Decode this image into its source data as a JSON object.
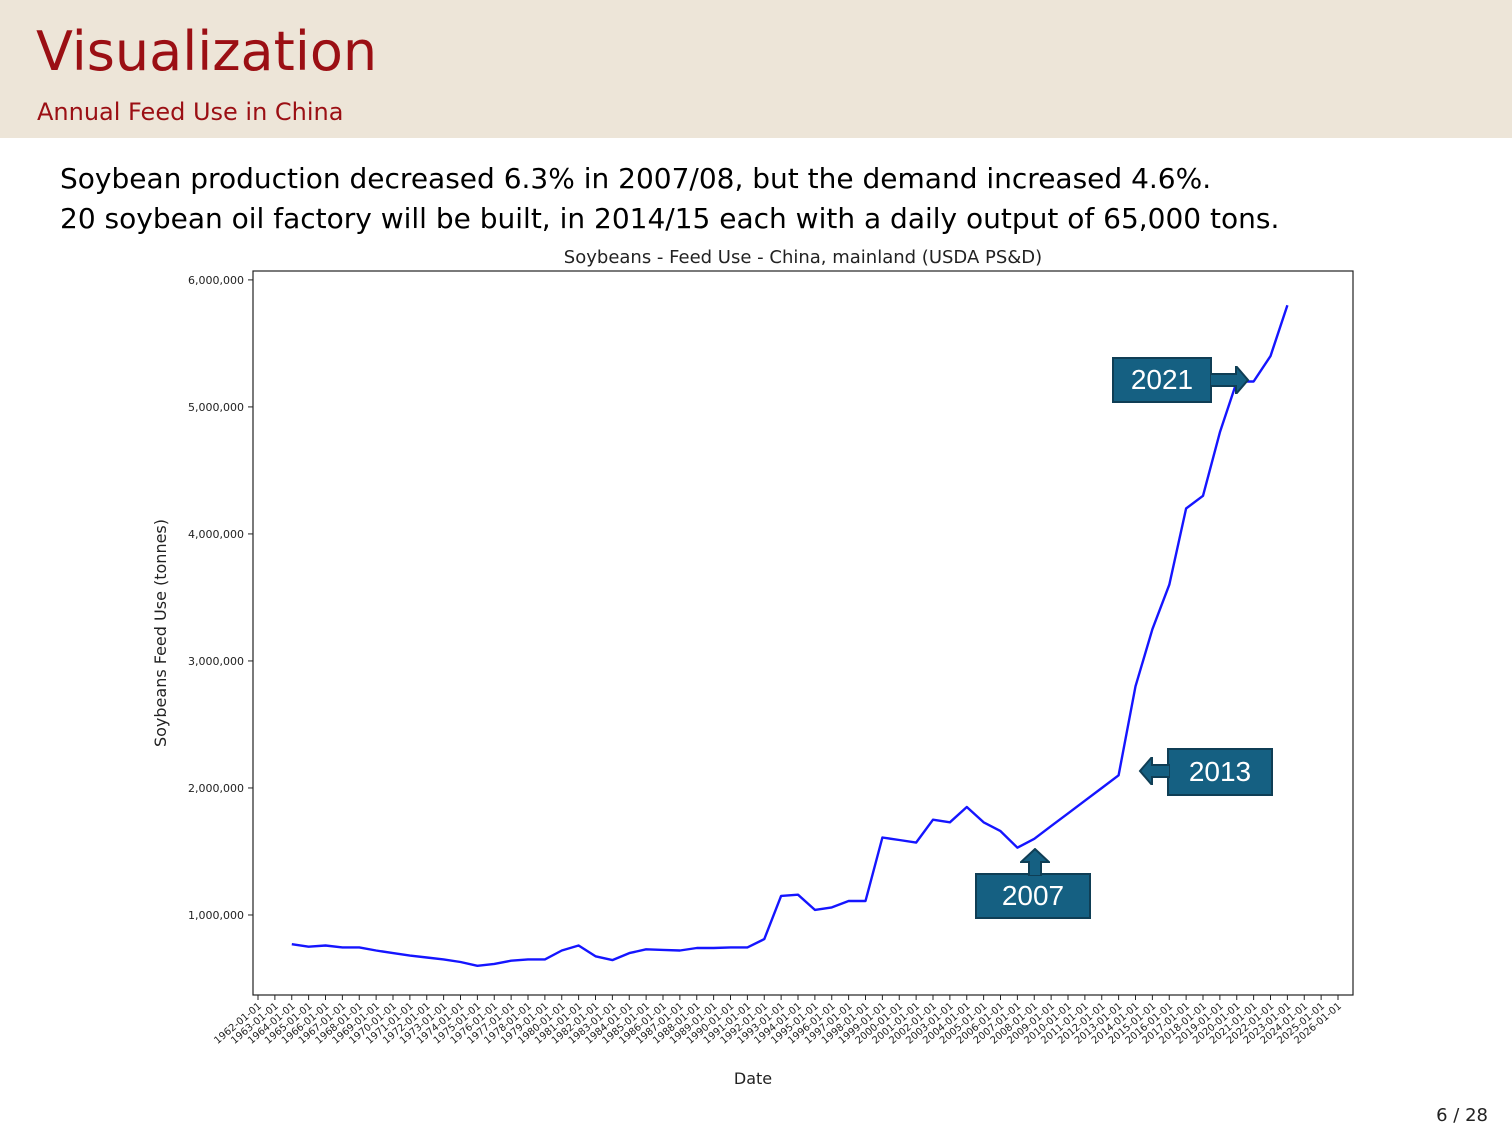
{
  "slide": {
    "title": "Visualization",
    "subtitle": "Annual Feed Use in China",
    "bullets": [
      "Soybean production decreased 6.3% in 2007/08, but the demand increased 4.6%.",
      "20 soybean oil factory will be built, in 2014/15 each with a daily output of 65,000 tons."
    ],
    "page": "6 / 28"
  },
  "callouts": [
    "2021",
    "2013",
    "2007"
  ],
  "colors": {
    "header_bg": "#ede5d8",
    "title": "#9b0f14",
    "line": "#1515ff",
    "callout_bg": "#156082"
  },
  "chart_data": {
    "type": "line",
    "title": "Soybeans - Feed Use - China, mainland (USDA PS&D)",
    "xlabel": "Date",
    "ylabel": "Soybeans Feed Use (tonnes)",
    "ylim": [
      370000,
      6070000
    ],
    "yticks": [
      1000000,
      2000000,
      3000000,
      4000000,
      5000000,
      6000000
    ],
    "ytick_labels": [
      "1,000,000",
      "2,000,000",
      "3,000,000",
      "4,000,000",
      "5,000,000",
      "6,000,000"
    ],
    "xtick_labels": [
      "1962-01-01",
      "1963-01-01",
      "1964-01-01",
      "1965-01-01",
      "1966-01-01",
      "1967-01-01",
      "1968-01-01",
      "1969-01-01",
      "1970-01-01",
      "1971-01-01",
      "1972-01-01",
      "1973-01-01",
      "1974-01-01",
      "1975-01-01",
      "1976-01-01",
      "1977-01-01",
      "1978-01-01",
      "1979-01-01",
      "1980-01-01",
      "1981-01-01",
      "1982-01-01",
      "1983-01-01",
      "1984-01-01",
      "1985-01-01",
      "1986-01-01",
      "1987-01-01",
      "1988-01-01",
      "1989-01-01",
      "1990-01-01",
      "1991-01-01",
      "1992-01-01",
      "1993-01-01",
      "1994-01-01",
      "1995-01-01",
      "1996-01-01",
      "1997-01-01",
      "1998-01-01",
      "1999-01-01",
      "2000-01-01",
      "2001-01-01",
      "2002-01-01",
      "2003-01-01",
      "2004-01-01",
      "2005-01-01",
      "2006-01-01",
      "2007-01-01",
      "2008-01-01",
      "2009-01-01",
      "2010-01-01",
      "2011-01-01",
      "2012-01-01",
      "2013-01-01",
      "2014-01-01",
      "2015-01-01",
      "2016-01-01",
      "2017-01-01",
      "2018-01-01",
      "2019-01-01",
      "2020-01-01",
      "2021-01-01",
      "2022-01-01",
      "2023-01-01",
      "2024-01-01",
      "2025-01-01",
      "2026-01-01"
    ],
    "grid": false,
    "series": [
      {
        "x": [
          1964,
          1965,
          1966,
          1967,
          1968,
          1969,
          1970,
          1971,
          1972,
          1973,
          1974,
          1975,
          1976,
          1977,
          1978,
          1979,
          1980,
          1981,
          1982,
          1983,
          1984,
          1985,
          1986,
          1987,
          1988,
          1989,
          1990,
          1991,
          1992,
          1993,
          1994,
          1995,
          1996,
          1997,
          1998,
          1999,
          2000,
          2001,
          2002,
          2003,
          2004,
          2005,
          2006,
          2007,
          2008,
          2009,
          2010,
          2011,
          2012,
          2013,
          2014,
          2015,
          2016,
          2017,
          2018,
          2019,
          2020,
          2021,
          2022,
          2023
        ],
        "values": [
          770000,
          750000,
          760000,
          745000,
          745000,
          720000,
          700000,
          680000,
          665000,
          650000,
          630000,
          600000,
          615000,
          640000,
          650000,
          650000,
          720000,
          760000,
          675000,
          645000,
          700000,
          730000,
          725000,
          720000,
          740000,
          740000,
          745000,
          745000,
          810000,
          1150000,
          1160000,
          1040000,
          1060000,
          1110000,
          1110000,
          1610000,
          1590000,
          1570000,
          1750000,
          1730000,
          1850000,
          1730000,
          1660000,
          1530000,
          1600000,
          1700000,
          1800000,
          1900000,
          2000000,
          2100000,
          2800000,
          3250000,
          3600000,
          4200000,
          4300000,
          4800000,
          5200000,
          5200000,
          5400000,
          5800000
        ]
      }
    ]
  }
}
